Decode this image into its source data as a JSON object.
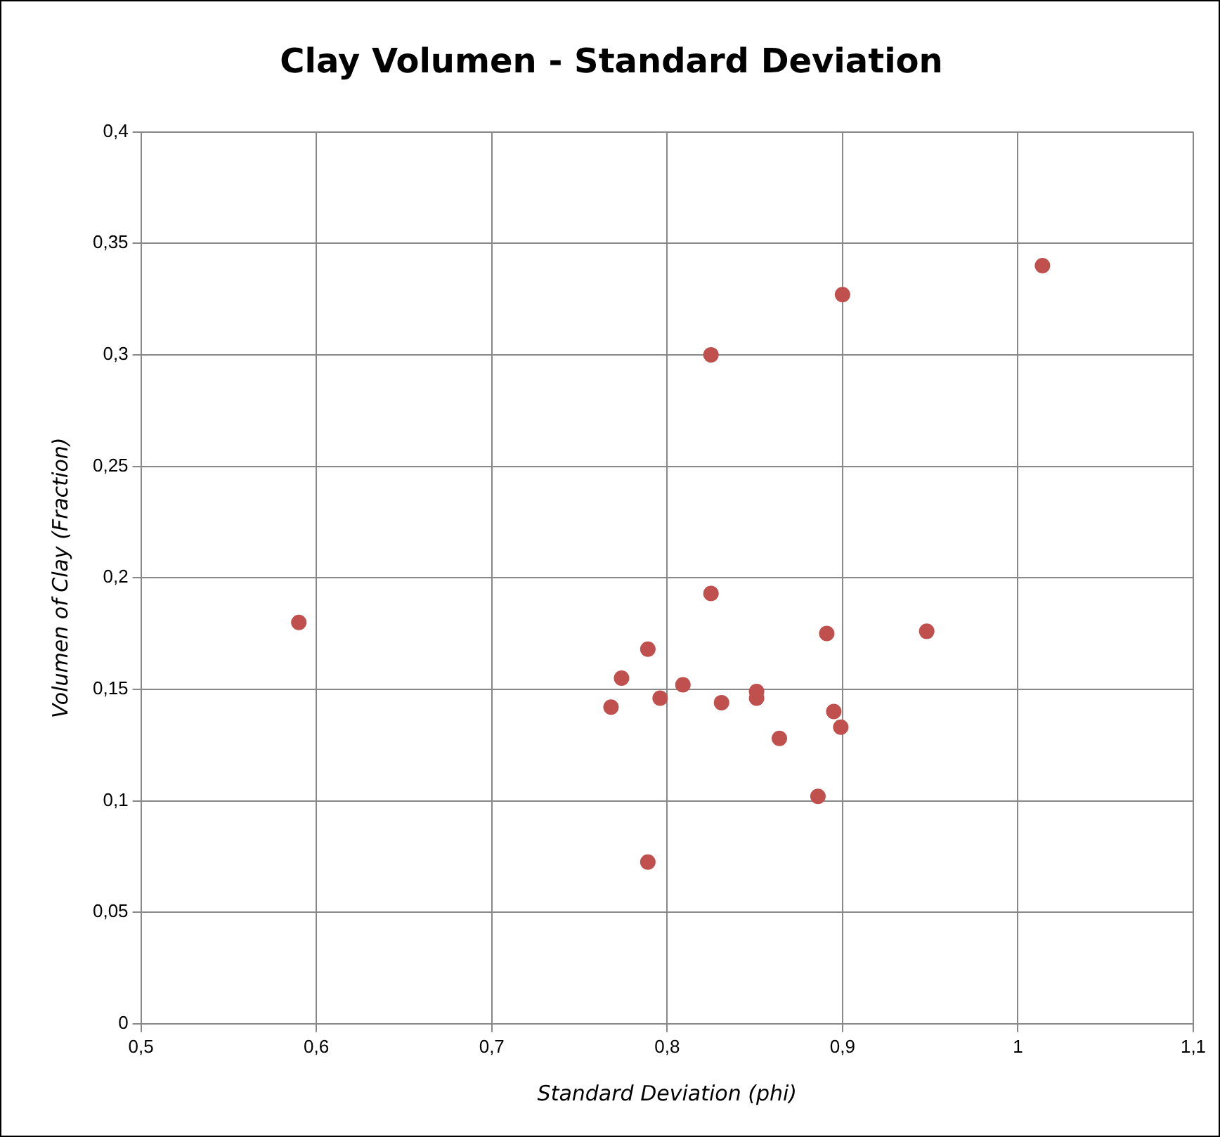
{
  "chart_data": {
    "type": "scatter",
    "title": "Clay Volumen - Standard Deviation",
    "xlabel": "Standard Deviation (phi)",
    "ylabel": "Volumen of Clay (Fraction)",
    "x": [
      0.59,
      0.9,
      1.014,
      0.825,
      0.825,
      0.789,
      0.774,
      0.768,
      0.796,
      0.809,
      0.831,
      0.851,
      0.851,
      0.864,
      0.891,
      0.895,
      0.899,
      0.886,
      0.948,
      0.789
    ],
    "series": [
      {
        "color": "#c0504d",
        "values": [
          0.18,
          0.327,
          0.34,
          0.3,
          0.193,
          0.168,
          0.155,
          0.142,
          0.146,
          0.152,
          0.144,
          0.149,
          0.146,
          0.128,
          0.175,
          0.14,
          0.133,
          0.102,
          0.176,
          0.0725
        ]
      }
    ],
    "xlim": [
      0.5,
      1.1
    ],
    "xticks": [
      {
        "value": 0.5,
        "label": "0,5"
      },
      {
        "value": 0.6,
        "label": "0,6"
      },
      {
        "value": 0.7,
        "label": "0,7"
      },
      {
        "value": 0.8,
        "label": "0,8"
      },
      {
        "value": 0.9,
        "label": "0,9"
      },
      1,
      {
        "value": 1.1,
        "label": "1,1"
      }
    ],
    "ylim": [
      0,
      0.4
    ],
    "yticks": [
      0,
      {
        "value": 0.05,
        "label": "0,05"
      },
      {
        "value": 0.1,
        "label": "0,1"
      },
      {
        "value": 0.15,
        "label": "0,15"
      },
      {
        "value": 0.2,
        "label": "0,2"
      },
      {
        "value": 0.25,
        "label": "0,25"
      },
      {
        "value": 0.3,
        "label": "0,3"
      },
      {
        "value": 0.35,
        "label": "0,35"
      },
      {
        "value": 0.4,
        "label": "0,4"
      }
    ],
    "grid": true,
    "legend": false,
    "marker": "circle"
  }
}
